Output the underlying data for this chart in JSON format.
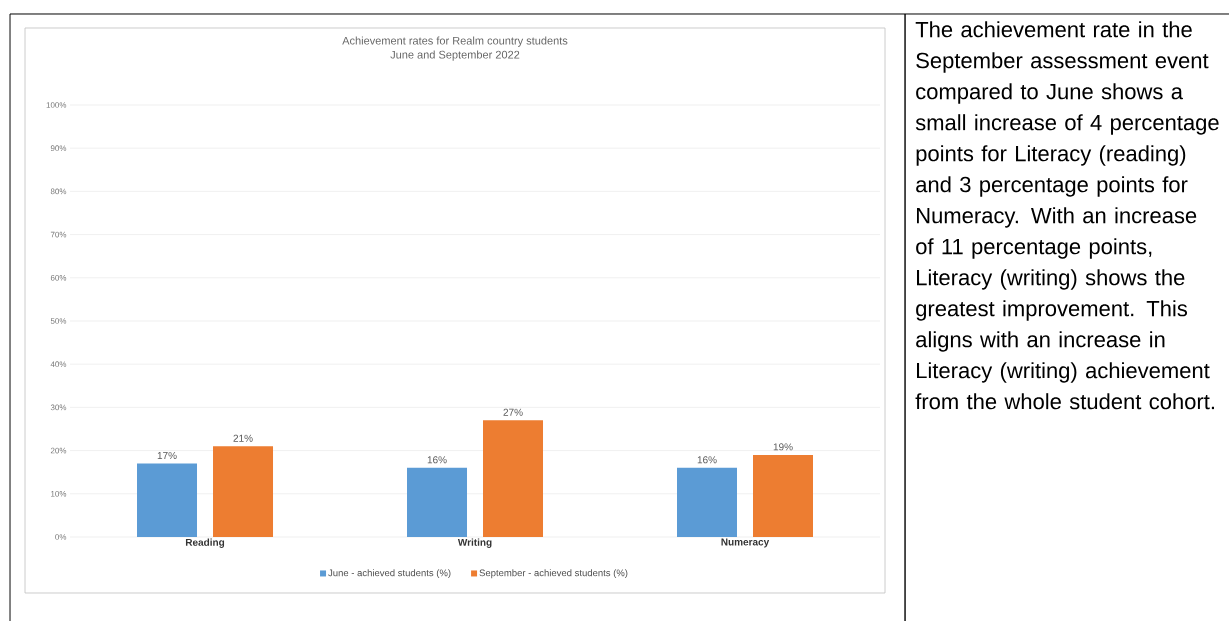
{
  "chart_data": {
    "type": "bar",
    "title": "Achievement rates for Realm country students",
    "subtitle": "June and September 2022",
    "categories": [
      "Reading",
      "Writing",
      "Numeracy"
    ],
    "series": [
      {
        "name": "June - achieved students (%)",
        "color": "#5b9bd5",
        "values": [
          17,
          16,
          16
        ],
        "value_labels": [
          "17%",
          "16%",
          "16%"
        ]
      },
      {
        "name": "September - achieved students (%)",
        "color": "#ed7d31",
        "values": [
          21,
          27,
          19
        ],
        "value_labels": [
          "21%",
          "27%",
          "19%"
        ]
      }
    ],
    "ylim": [
      0,
      100
    ],
    "yticks": [
      {
        "value": 0,
        "label": "0%"
      },
      {
        "value": 10,
        "label": "10%"
      },
      {
        "value": 20,
        "label": "20%"
      },
      {
        "value": 30,
        "label": "30%"
      },
      {
        "value": 40,
        "label": "40%"
      },
      {
        "value": 50,
        "label": "50%"
      },
      {
        "value": 60,
        "label": "60%"
      },
      {
        "value": 70,
        "label": "70%"
      },
      {
        "value": 80,
        "label": "80%"
      },
      {
        "value": 90,
        "label": "90%"
      },
      {
        "value": 100,
        "label": "100%"
      }
    ],
    "grid": "y",
    "legend": "bottom",
    "annotations": [
      "The achievement rate in the September assessment event compared to June shows a small increase of 4 percentage points for Literacy (reading) and 3 percentage points for Numeracy. With an increase of 11 percentage points, Literacy (writing) shows the greatest improvement. This aligns with an increase in Literacy (writing) achievement from the whole student cohort."
    ]
  }
}
